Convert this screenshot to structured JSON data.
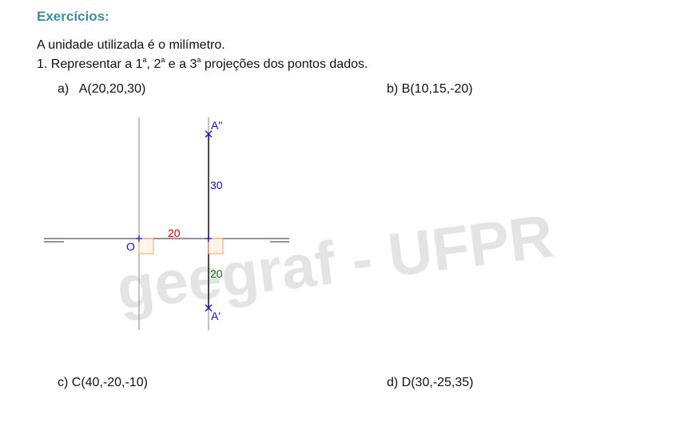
{
  "heading": "Exercícios:",
  "unit_note": "A unidade utilizada é o milímetro.",
  "instruction": {
    "prefix": "1. Representar a 1",
    "sup1": "a",
    "mid1": ", 2",
    "sup2": "a",
    "mid2": " e a 3",
    "sup3": "a",
    "suffix": " projeções dos pontos dados."
  },
  "items": {
    "a_label": "a)",
    "a_point": "A(20,20,30)",
    "b": "b) B(10,15,-20)",
    "c": "c) C(40,-20,-10)",
    "d": "d) D(30,-25,35)"
  },
  "drawing": {
    "origin_label": "O",
    "point_v_label": "A\"",
    "point_h_label": "A'",
    "dim_x": "20",
    "dim_z": "30",
    "dim_y": "20",
    "colors": {
      "blue": "#1010cc",
      "red": "#dd0000",
      "green": "#007700",
      "orange": "#f0a070",
      "axis": "#555555"
    }
  },
  "watermark": "geegraf - UFPR"
}
